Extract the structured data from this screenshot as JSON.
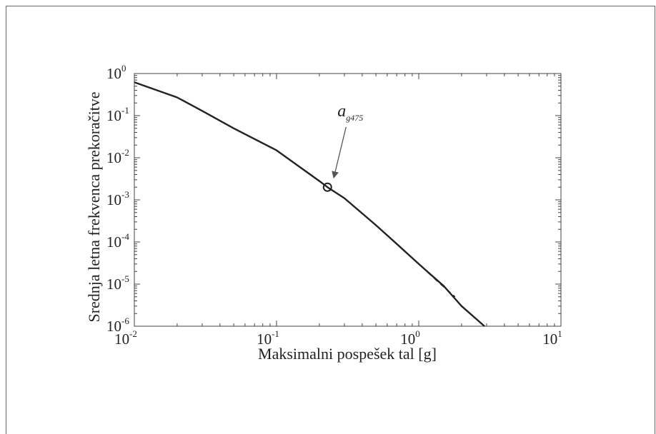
{
  "chart_data": {
    "type": "line",
    "xlabel": "Maksimalni pospešek tal [g]",
    "ylabel": "Srednja letna frekvenca prekoračitve",
    "x_scale": "log",
    "y_scale": "log",
    "xlim": [
      0.01,
      10
    ],
    "ylim": [
      1e-06,
      1
    ],
    "x_ticks": [
      {
        "base": "10",
        "exp": "-2"
      },
      {
        "base": "10",
        "exp": "-1"
      },
      {
        "base": "10",
        "exp": "0"
      },
      {
        "base": "10",
        "exp": "1"
      }
    ],
    "y_ticks": [
      {
        "base": "10",
        "exp": "-6"
      },
      {
        "base": "10",
        "exp": "-5"
      },
      {
        "base": "10",
        "exp": "-4"
      },
      {
        "base": "10",
        "exp": "-3"
      },
      {
        "base": "10",
        "exp": "-2"
      },
      {
        "base": "10",
        "exp": "-1"
      },
      {
        "base": "10",
        "exp": "0"
      }
    ],
    "grid": false,
    "series": [
      {
        "style": "solid",
        "color": "#222222",
        "points": [
          [
            0.01,
            0.62
          ],
          [
            0.02,
            0.27
          ],
          [
            0.03,
            0.13
          ],
          [
            0.05,
            0.05
          ],
          [
            0.1,
            0.015
          ],
          [
            0.2,
            0.0028
          ],
          [
            0.228,
            0.002
          ],
          [
            0.3,
            0.0011
          ],
          [
            0.5,
            0.00025
          ],
          [
            0.7,
            9e-05
          ],
          [
            1.0,
            3e-05
          ],
          [
            1.5,
            9e-06
          ],
          [
            2.0,
            3e-06
          ],
          [
            2.9,
            1e-06
          ]
        ]
      },
      {
        "style": "dashed",
        "color": "#222222",
        "points": [
          [
            0.17,
            0.0042
          ],
          [
            0.228,
            0.002
          ],
          [
            0.3,
            0.0011
          ],
          [
            0.5,
            0.00025
          ],
          [
            0.7,
            9e-05
          ],
          [
            1.0,
            3e-05
          ],
          [
            1.4,
            1.05e-05
          ],
          [
            1.8,
            5e-06
          ]
        ]
      }
    ],
    "marker": {
      "x": 0.228,
      "y": 0.002,
      "shape": "open-circle"
    },
    "annotation": {
      "base": "a",
      "sub": "g475",
      "target_x": 0.228,
      "target_y": 0.002,
      "arrow_color": "#555555"
    }
  }
}
